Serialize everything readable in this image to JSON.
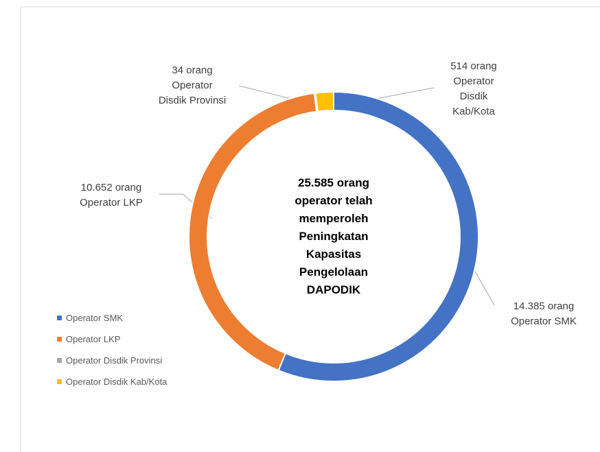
{
  "chart_data": {
    "type": "donut",
    "center_text": "25.585 orang operator telah memperoleh Peningkatan Kapasitas Pengelolaan DAPODIK",
    "categories": [
      "Operator SMK",
      "Operator LKP",
      "Operator Disdik Provinsi",
      "Operator Disdik Kab/Kota"
    ],
    "values": [
      14385,
      10652,
      34,
      514
    ],
    "value_labels": [
      "14.385 orang",
      "10.652 orang",
      "34 orang",
      "514 orang"
    ],
    "colors": [
      "#4472c4",
      "#ed7d31",
      "#a5a5a5",
      "#ffc000"
    ],
    "legend": "bottom-left"
  }
}
